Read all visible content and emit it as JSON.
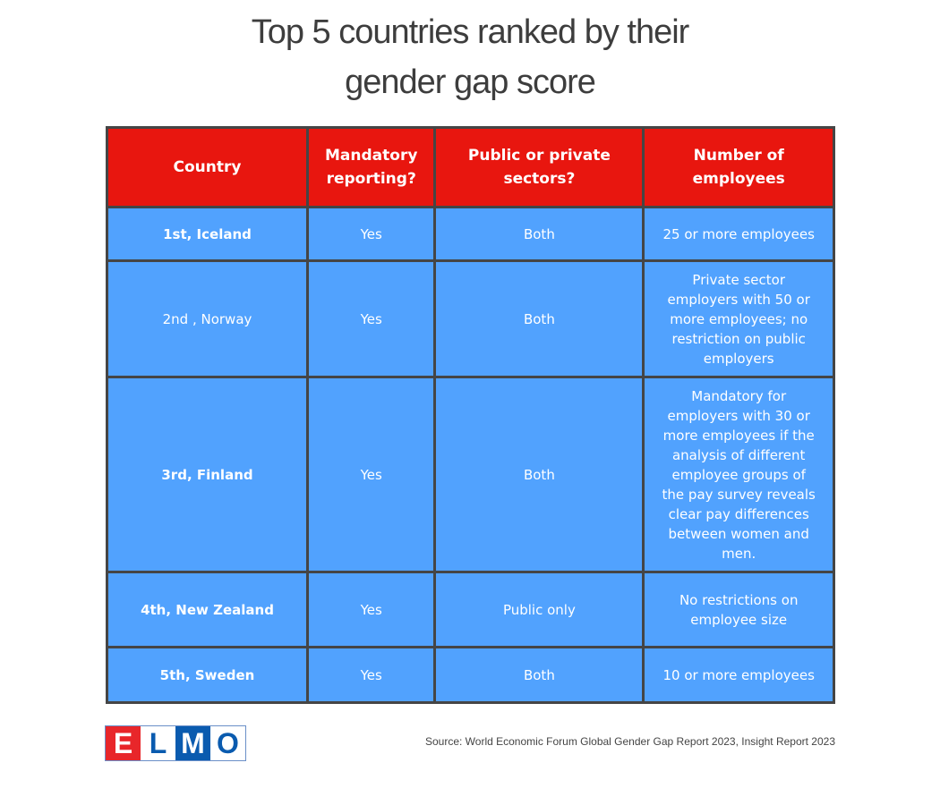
{
  "title_line1": "Top 5 countries ranked by their",
  "title_line2": "gender gap score",
  "headers": [
    "Country",
    "Mandatory reporting?",
    "Public or private sectors?",
    "Number of employees"
  ],
  "rows": [
    [
      "1st, Iceland",
      "Yes",
      "Both",
      "25 or more employees"
    ],
    [
      "2nd , Norway",
      "Yes",
      "Both",
      "Private sector employers with 50 or more employees; no restriction on public employers"
    ],
    [
      "3rd, Finland",
      "Yes",
      "Both",
      "Mandatory for employers with 30 or more employees if the analysis of different employee groups of the pay survey reveals clear pay differences between women and men."
    ],
    [
      "4th, New Zealand",
      "Yes",
      "Public only",
      "No restrictions on employee size"
    ],
    [
      "5th, Sweden",
      "Yes",
      "Both",
      "10 or more employees"
    ]
  ],
  "logo": {
    "text": "ELMO",
    "letters": [
      "E",
      "L",
      "M",
      "O"
    ]
  },
  "source": "Source: World Economic Forum Global Gender Gap Report 2023, Insight Report 2023",
  "colors": {
    "header": "#E8160F",
    "cell": "#51A2FE",
    "border": "#454545",
    "logo_red": "#E8262A",
    "logo_blue": "#0A5BAF"
  }
}
